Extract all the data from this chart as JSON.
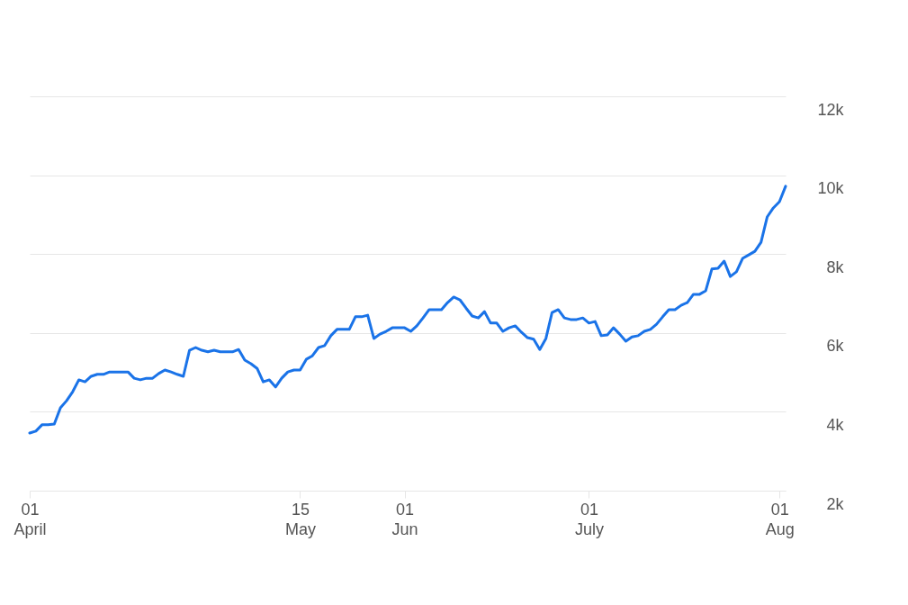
{
  "chart_data": {
    "type": "line",
    "grid": "y",
    "x": [
      "--04-01",
      "--04-02",
      "--04-03",
      "--04-04",
      "--04-05",
      "--04-06",
      "--04-07",
      "--04-08",
      "--04-09",
      "--04-10",
      "--04-11",
      "--04-12",
      "--04-13",
      "--04-14",
      "--04-15",
      "--04-16",
      "--04-17",
      "--04-18",
      "--04-19",
      "--04-20",
      "--04-21",
      "--04-22",
      "--04-23",
      "--04-24",
      "--04-25",
      "--04-26",
      "--04-27",
      "--04-28",
      "--04-29",
      "--04-30",
      "--05-01",
      "--05-02",
      "--05-03",
      "--05-04",
      "--05-05",
      "--05-06",
      "--05-07",
      "--05-08",
      "--05-09",
      "--05-10",
      "--05-11",
      "--05-12",
      "--05-13",
      "--05-14",
      "--05-15",
      "--05-16",
      "--05-17",
      "--05-18",
      "--05-19",
      "--05-20",
      "--05-21",
      "--05-22",
      "--05-23",
      "--05-24",
      "--05-25",
      "--05-26",
      "--05-27",
      "--05-28",
      "--05-29",
      "--05-30",
      "--05-31",
      "--06-01",
      "--06-02",
      "--06-03",
      "--06-04",
      "--06-05",
      "--06-06",
      "--06-07",
      "--06-08",
      "--06-09",
      "--06-10",
      "--06-11",
      "--06-12",
      "--06-13",
      "--06-14",
      "--06-15",
      "--06-16",
      "--06-17",
      "--06-18",
      "--06-19",
      "--06-20",
      "--06-21",
      "--06-22",
      "--06-23",
      "--06-24",
      "--06-25",
      "--06-26",
      "--06-27",
      "--06-28",
      "--06-29",
      "--06-30",
      "--07-01",
      "--07-02",
      "--07-03",
      "--07-04",
      "--07-05",
      "--07-06",
      "--07-07",
      "--07-08",
      "--07-09",
      "--07-10",
      "--07-11",
      "--07-12",
      "--07-13",
      "--07-14",
      "--07-15",
      "--07-16",
      "--07-17",
      "--07-18",
      "--07-19",
      "--07-20",
      "--07-21",
      "--07-22",
      "--07-23",
      "--07-24",
      "--07-25",
      "--07-26",
      "--07-27",
      "--07-28",
      "--07-29",
      "--07-30",
      "--07-31",
      "--08-01",
      "--08-02"
    ],
    "series": [
      {
        "color": "#1a73e8",
        "values": [
          3460,
          3510,
          3670,
          3670,
          3690,
          4100,
          4280,
          4510,
          4810,
          4760,
          4900,
          4950,
          4950,
          5010,
          5010,
          5010,
          5010,
          4850,
          4810,
          4850,
          4850,
          4970,
          5060,
          5010,
          4950,
          4900,
          5560,
          5630,
          5560,
          5520,
          5560,
          5520,
          5520,
          5520,
          5580,
          5310,
          5220,
          5100,
          4760,
          4810,
          4630,
          4850,
          5010,
          5060,
          5060,
          5330,
          5420,
          5630,
          5680,
          5930,
          6090,
          6090,
          6090,
          6410,
          6410,
          6450,
          5860,
          5970,
          6040,
          6130,
          6130,
          6130,
          6040,
          6180,
          6380,
          6590,
          6590,
          6590,
          6770,
          6910,
          6840,
          6630,
          6430,
          6380,
          6540,
          6250,
          6250,
          6040,
          6130,
          6180,
          6020,
          5880,
          5840,
          5580,
          5860,
          6520,
          6590,
          6380,
          6340,
          6340,
          6380,
          6250,
          6290,
          5930,
          5950,
          6130,
          5970,
          5790,
          5900,
          5930,
          6040,
          6090,
          6220,
          6410,
          6590,
          6590,
          6700,
          6770,
          6980,
          6980,
          7070,
          7620,
          7640,
          7820,
          7430,
          7550,
          7890,
          7980,
          8070,
          8300,
          8940,
          9170,
          9330,
          9720
        ]
      }
    ],
    "xlim": [
      "--04-01",
      "--08-02"
    ],
    "xticks": [
      {
        "value": "--04-01",
        "label": "01 April"
      },
      {
        "value": "--05-15",
        "label": "15 May"
      },
      {
        "value": "--06-01",
        "label": "01 Jun"
      },
      {
        "value": "--07-01",
        "label": "01 July"
      },
      {
        "value": "--08-01",
        "label": "01 Aug"
      }
    ],
    "ylim": [
      2000,
      12000
    ],
    "yticks": [
      {
        "value": 2000,
        "label": "2k"
      },
      {
        "value": 4000,
        "label": "4k"
      },
      {
        "value": 6000,
        "label": "6k"
      },
      {
        "value": 8000,
        "label": "8k"
      },
      {
        "value": 10000,
        "label": "10k"
      },
      {
        "value": 12000,
        "label": "12k"
      }
    ],
    "marker": "none",
    "line_style": "solid"
  }
}
